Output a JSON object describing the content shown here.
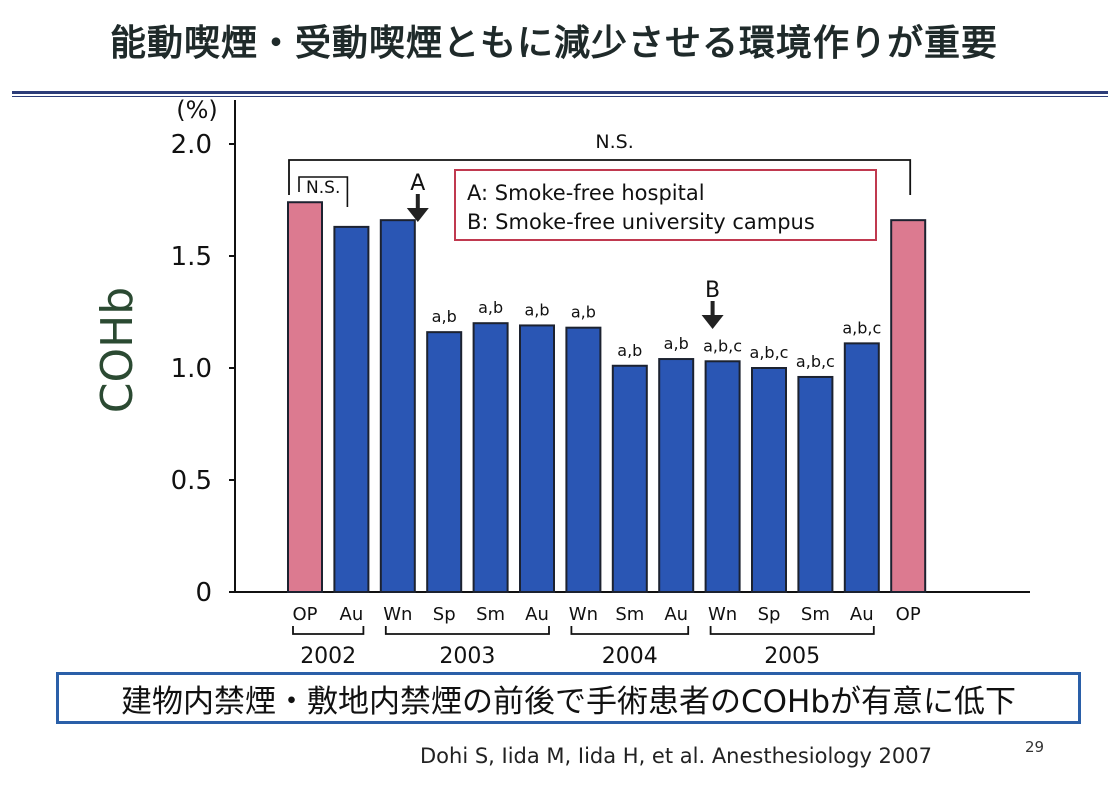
{
  "slide": {
    "title": "能動喫煙・受動喫煙ともに減少させる環境作りが重要",
    "conclusion": "建物内禁煙・敷地内禁煙の前後で手術患者のCOHbが有意に低下",
    "citation": "Dohi S, Iida M, Iida H, et al. Anesthesiology 2007",
    "page_number": "29"
  },
  "colors": {
    "blue_bar": "#2a56b4",
    "pink_bar": "#dc7a90",
    "legend_border": "#c0394f",
    "rule": "#2c3c78",
    "ylabel": "#2b4a32"
  },
  "chart_data": {
    "type": "bar",
    "ylabel": "COHb",
    "yunit": "(%)",
    "ylim": [
      0,
      2.0
    ],
    "yticks": [
      "0",
      "0.5",
      "1.0",
      "1.5",
      "2.0"
    ],
    "grid": false,
    "categories": [
      "OP",
      "Au",
      "Wn",
      "Sp",
      "Sm",
      "Au",
      "Wn",
      "Sm",
      "Au",
      "Wn",
      "Sp",
      "Sm",
      "Au",
      "OP"
    ],
    "values": [
      1.74,
      1.63,
      1.66,
      1.16,
      1.2,
      1.19,
      1.18,
      1.01,
      1.04,
      1.03,
      1.0,
      0.96,
      1.11,
      1.66
    ],
    "bar_colors": [
      "pink",
      "blue",
      "blue",
      "blue",
      "blue",
      "blue",
      "blue",
      "blue",
      "blue",
      "blue",
      "blue",
      "blue",
      "blue",
      "pink"
    ],
    "annotations": [
      "",
      "",
      "",
      "a,b",
      "a,b",
      "a,b",
      "a,b",
      "a,b",
      "a,b",
      "a,b,c",
      "a,b,c",
      "a,b,c",
      "a,b,c",
      ""
    ],
    "year_groups": [
      {
        "label": "2002",
        "from": 0,
        "to": 1
      },
      {
        "label": "2003",
        "from": 2,
        "to": 5
      },
      {
        "label": "2004",
        "from": 6,
        "to": 8
      },
      {
        "label": "2005",
        "from": 9,
        "to": 12
      }
    ],
    "significance": [
      {
        "label": "N.S.",
        "from": 0,
        "to": 13
      },
      {
        "label": "N.S.",
        "from": 0,
        "to": 1
      }
    ],
    "events": [
      {
        "label": "A",
        "at": 2
      },
      {
        "label": "B",
        "at": 9
      }
    ],
    "legend": [
      "A: Smoke-free hospital",
      "B: Smoke-free university campus"
    ]
  }
}
